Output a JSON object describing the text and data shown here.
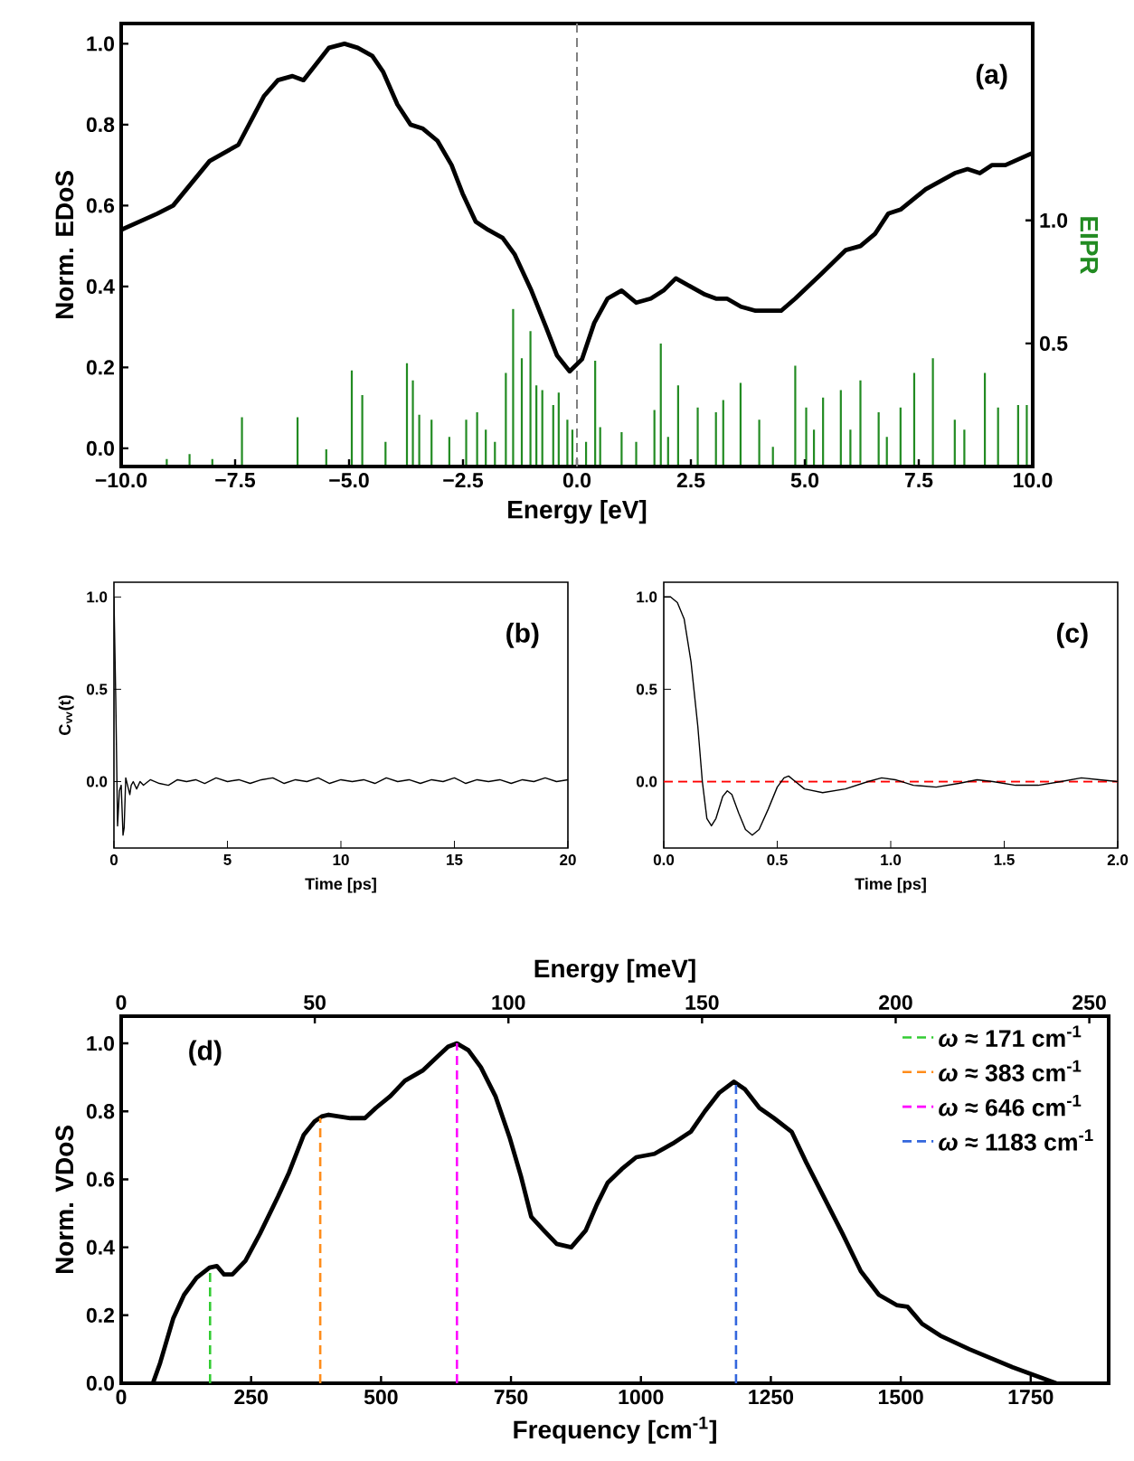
{
  "chart_data": [
    {
      "type": "line",
      "xlabel": "Energy [eV]",
      "ylabel": "Norm. EDoS",
      "y2label": "EIPR",
      "annotations": [
        "(a)"
      ],
      "xlim": [
        -10,
        10
      ],
      "xticks": [
        {
          "value": -10,
          "label": "−10.0"
        },
        {
          "value": -7.5,
          "label": "−7.5"
        },
        {
          "value": -5,
          "label": "−5.0"
        },
        {
          "value": -2.5,
          "label": "−2.5"
        },
        {
          "value": 0,
          "label": "0.0"
        },
        {
          "value": 2.5,
          "label": "2.5"
        },
        {
          "value": 5,
          "label": "5.0"
        },
        {
          "value": 7.5,
          "label": "7.5"
        },
        {
          "value": 10,
          "label": "10.0"
        }
      ],
      "ylim": [
        -0.045,
        1.05
      ],
      "yticks": [
        {
          "value": 0,
          "label": "0.0"
        },
        {
          "value": 0.2,
          "label": "0.2"
        },
        {
          "value": 0.4,
          "label": "0.4"
        },
        {
          "value": 0.6,
          "label": "0.6"
        },
        {
          "value": 0.8,
          "label": "0.8"
        },
        {
          "value": 1,
          "label": "1.0"
        }
      ],
      "y2lim": [
        0,
        1.8
      ],
      "y2ticks": [
        {
          "value": 0.5,
          "label": "0.5"
        },
        {
          "value": 1,
          "label": "1.0"
        }
      ],
      "ref_lines": [
        {
          "axis": "x",
          "value": 0,
          "color": "#808080",
          "line_style": "dashed"
        }
      ],
      "series": [
        {
          "type": "bar",
          "axis": "y2",
          "color": "#228b22",
          "x": [
            -9,
            -8.5,
            -8,
            -7.35,
            -6.13,
            -5.5,
            -4.94,
            -4.71,
            -4.2,
            -3.73,
            -3.6,
            -3.46,
            -3.19,
            -2.8,
            -2.43,
            -2.19,
            -2.0,
            -1.8,
            -1.56,
            -1.4,
            -1.21,
            -1.02,
            -0.89,
            -0.76,
            -0.52,
            -0.4,
            -0.21,
            -0.1,
            0.2,
            0.4,
            0.51,
            0.98,
            1.3,
            1.7,
            1.84,
            2.0,
            2.22,
            2.65,
            3.05,
            3.21,
            3.59,
            4.0,
            4.3,
            4.79,
            5.03,
            5.2,
            5.4,
            5.79,
            6.0,
            6.22,
            6.62,
            6.8,
            7.1,
            7.4,
            7.81,
            8.29,
            8.5,
            8.95,
            9.24,
            9.68,
            9.87
          ],
          "values": [
            0.03,
            0.05,
            0.03,
            0.2,
            0.2,
            0.07,
            0.39,
            0.29,
            0.1,
            0.42,
            0.35,
            0.21,
            0.19,
            0.12,
            0.19,
            0.22,
            0.15,
            0.1,
            0.38,
            0.64,
            0.44,
            0.55,
            0.33,
            0.31,
            0.25,
            0.3,
            0.19,
            0.15,
            0.1,
            0.43,
            0.16,
            0.14,
            0.1,
            0.23,
            0.5,
            0.12,
            0.33,
            0.24,
            0.22,
            0.27,
            0.34,
            0.19,
            0.08,
            0.41,
            0.24,
            0.15,
            0.28,
            0.31,
            0.15,
            0.35,
            0.22,
            0.12,
            0.24,
            0.38,
            0.44,
            0.19,
            0.15,
            0.38,
            0.24,
            0.25,
            0.25
          ]
        },
        {
          "color": "#000000",
          "x": [
            -10,
            -9.21,
            -8.86,
            -8.06,
            -7.43,
            -6.87,
            -6.56,
            -6.24,
            -6.0,
            -5.44,
            -5.1,
            -4.81,
            -4.49,
            -4.25,
            -3.94,
            -3.65,
            -3.38,
            -3.06,
            -2.75,
            -2.51,
            -2.22,
            -1.95,
            -1.63,
            -1.37,
            -1.0,
            -0.68,
            -0.44,
            -0.16,
            0.11,
            0.38,
            0.67,
            0.98,
            1.3,
            1.62,
            1.9,
            2.17,
            2.49,
            2.81,
            3.05,
            3.29,
            3.6,
            3.92,
            4.48,
            4.79,
            5.35,
            5.9,
            6.22,
            6.54,
            6.83,
            7.1,
            7.65,
            8.29,
            8.57,
            8.84,
            9.11,
            9.4,
            10
          ],
          "values": [
            0.54,
            0.58,
            0.6,
            0.71,
            0.75,
            0.87,
            0.91,
            0.92,
            0.91,
            0.99,
            1.0,
            0.99,
            0.97,
            0.93,
            0.85,
            0.8,
            0.79,
            0.76,
            0.7,
            0.63,
            0.56,
            0.54,
            0.52,
            0.48,
            0.39,
            0.3,
            0.23,
            0.19,
            0.22,
            0.31,
            0.37,
            0.39,
            0.36,
            0.37,
            0.39,
            0.42,
            0.4,
            0.38,
            0.37,
            0.37,
            0.35,
            0.34,
            0.34,
            0.37,
            0.43,
            0.49,
            0.5,
            0.53,
            0.58,
            0.59,
            0.64,
            0.68,
            0.69,
            0.68,
            0.7,
            0.7,
            0.73
          ]
        }
      ]
    },
    {
      "type": "line",
      "xlabel": "Time [ps]",
      "ylabel": "C$_{vv}$(t)",
      "annotations": [
        "(b)"
      ],
      "xlim": [
        0,
        20
      ],
      "xticks": [
        0,
        5,
        10,
        15,
        20
      ],
      "ylim": [
        -0.36,
        1.08
      ],
      "yticks": [
        {
          "value": 0,
          "label": "0.0"
        },
        {
          "value": 0.5,
          "label": "0.5"
        },
        {
          "value": 1,
          "label": "1.0"
        }
      ],
      "series": [
        {
          "color": "#000000",
          "x": [
            0,
            0.08,
            0.16,
            0.24,
            0.32,
            0.4,
            0.45,
            0.52,
            0.6,
            0.7,
            0.76,
            0.85,
            1.0,
            1.15,
            1.3,
            1.6,
            2.0,
            2.4,
            2.8,
            3.2,
            3.6,
            4.0,
            4.5,
            5.0,
            5.5,
            6.0,
            6.5,
            7.0,
            7.5,
            8.0,
            8.5,
            9.0,
            9.5,
            10,
            10.5,
            11,
            11.5,
            12,
            12.5,
            13,
            13.5,
            14,
            14.5,
            15,
            15.5,
            16,
            16.5,
            17,
            17.5,
            18,
            18.5,
            19,
            19.5,
            20
          ],
          "values": [
            1.0,
            0.45,
            -0.24,
            -0.05,
            -0.02,
            -0.29,
            -0.25,
            0.02,
            -0.02,
            -0.07,
            -0.02,
            0.0,
            -0.04,
            0.0,
            -0.02,
            0.01,
            -0.01,
            -0.02,
            0.01,
            0.0,
            0.01,
            -0.01,
            0.02,
            0.0,
            0.01,
            -0.01,
            0.01,
            0.02,
            -0.01,
            0.01,
            0.0,
            0.02,
            -0.01,
            0.01,
            0.0,
            0.01,
            -0.01,
            0.02,
            0.0,
            0.01,
            -0.01,
            0.01,
            0.0,
            0.02,
            -0.01,
            0.01,
            0.0,
            0.01,
            -0.01,
            0.01,
            0.0,
            0.02,
            0.0,
            0.01
          ]
        }
      ]
    },
    {
      "type": "line",
      "xlabel": "Time [ps]",
      "annotations": [
        "(c)"
      ],
      "xlim": [
        0,
        2
      ],
      "xticks": [
        {
          "value": 0,
          "label": "0.0"
        },
        {
          "value": 0.5,
          "label": "0.5"
        },
        {
          "value": 1,
          "label": "1.0"
        },
        {
          "value": 1.5,
          "label": "1.5"
        },
        {
          "value": 2,
          "label": "2.0"
        }
      ],
      "ylim": [
        -0.36,
        1.08
      ],
      "yticks": [
        {
          "value": 0,
          "label": "0.0"
        },
        {
          "value": 0.5,
          "label": "0.5"
        },
        {
          "value": 1,
          "label": "1.0"
        }
      ],
      "ref_lines": [
        {
          "axis": "y",
          "value": 0,
          "color": "#ff0000",
          "line_style": "dashed"
        }
      ],
      "series": [
        {
          "color": "#000000",
          "x": [
            0,
            0.03,
            0.06,
            0.09,
            0.12,
            0.15,
            0.17,
            0.19,
            0.21,
            0.23,
            0.26,
            0.28,
            0.3,
            0.33,
            0.36,
            0.39,
            0.42,
            0.46,
            0.5,
            0.53,
            0.55,
            0.58,
            0.62,
            0.7,
            0.8,
            0.9,
            0.96,
            1.02,
            1.1,
            1.2,
            1.3,
            1.38,
            1.45,
            1.55,
            1.65,
            1.75,
            1.84,
            1.92,
            2.0
          ],
          "values": [
            1.0,
            1.0,
            0.97,
            0.88,
            0.65,
            0.3,
            0.0,
            -0.2,
            -0.24,
            -0.2,
            -0.08,
            -0.05,
            -0.07,
            -0.17,
            -0.26,
            -0.29,
            -0.26,
            -0.15,
            -0.03,
            0.02,
            0.03,
            0.0,
            -0.04,
            -0.06,
            -0.04,
            0.0,
            0.02,
            0.01,
            -0.02,
            -0.03,
            -0.01,
            0.01,
            0.0,
            -0.02,
            -0.02,
            0.0,
            0.02,
            0.01,
            0.0
          ]
        }
      ]
    },
    {
      "type": "line",
      "xlabel": "Frequency [cm$^{-1}$]",
      "ylabel": "Norm. VDoS",
      "x2label": "Energy [meV]",
      "annotations": [
        "(d)"
      ],
      "legend": "top right",
      "xlim": [
        0,
        1900
      ],
      "xticks": [
        0,
        250,
        500,
        750,
        1000,
        1250,
        1500,
        1750
      ],
      "x2lim": [
        0,
        255
      ],
      "x2ticks": [
        0,
        50,
        100,
        150,
        200,
        250
      ],
      "ylim": [
        0,
        1.08
      ],
      "yticks": [
        {
          "value": 0,
          "label": "0.0"
        },
        {
          "value": 0.2,
          "label": "0.2"
        },
        {
          "value": 0.4,
          "label": "0.4"
        },
        {
          "value": 0.6,
          "label": "0.6"
        },
        {
          "value": 0.8,
          "label": "0.8"
        },
        {
          "value": 1,
          "label": "1.0"
        }
      ],
      "series": [
        {
          "color": "#000000",
          "x": [
            61,
            75,
            100,
            121,
            145,
            170,
            184,
            198,
            214,
            239,
            267,
            302,
            323,
            351,
            372,
            386,
            399,
            420,
            441,
            469,
            490,
            518,
            546,
            580,
            608,
            629,
            646,
            668,
            692,
            720,
            748,
            769,
            789,
            813,
            838,
            866,
            894,
            915,
            936,
            963,
            991,
            1026,
            1061,
            1096,
            1123,
            1151,
            1179,
            1200,
            1228,
            1256,
            1290,
            1318,
            1353,
            1388,
            1423,
            1458,
            1492,
            1513,
            1541,
            1576,
            1632,
            1715,
            1799
          ],
          "values": [
            0,
            0.06,
            0.19,
            0.26,
            0.31,
            0.34,
            0.345,
            0.32,
            0.32,
            0.36,
            0.44,
            0.55,
            0.62,
            0.73,
            0.77,
            0.785,
            0.79,
            0.785,
            0.78,
            0.78,
            0.81,
            0.845,
            0.89,
            0.92,
            0.96,
            0.99,
            1.0,
            0.98,
            0.93,
            0.845,
            0.72,
            0.61,
            0.49,
            0.45,
            0.41,
            0.4,
            0.45,
            0.525,
            0.59,
            0.63,
            0.665,
            0.675,
            0.705,
            0.74,
            0.8,
            0.855,
            0.887,
            0.865,
            0.81,
            0.78,
            0.74,
            0.65,
            0.545,
            0.44,
            0.33,
            0.26,
            0.23,
            0.225,
            0.175,
            0.14,
            0.1,
            0.047,
            0.0
          ]
        },
        {
          "name": "*ω* ≈ 171 cm$^{-1}$",
          "color": "#33cc33",
          "line_style": "dashed",
          "x": [
            171,
            171
          ],
          "values": [
            0,
            0.34
          ]
        },
        {
          "name": "*ω* ≈ 383 cm$^{-1}$",
          "color": "#ff8c1a",
          "line_style": "dashed",
          "x": [
            383,
            383
          ],
          "values": [
            0,
            0.78
          ]
        },
        {
          "name": "*ω* ≈ 646 cm$^{-1}$",
          "color": "#ff00ff",
          "line_style": "dashed",
          "x": [
            646,
            646
          ],
          "values": [
            0,
            1.0
          ]
        },
        {
          "name": "*ω* ≈ 1183 cm$^{-1}$",
          "color": "#3366dd",
          "line_style": "dashed",
          "x": [
            1183,
            1183
          ],
          "values": [
            0,
            0.88
          ]
        }
      ]
    }
  ]
}
